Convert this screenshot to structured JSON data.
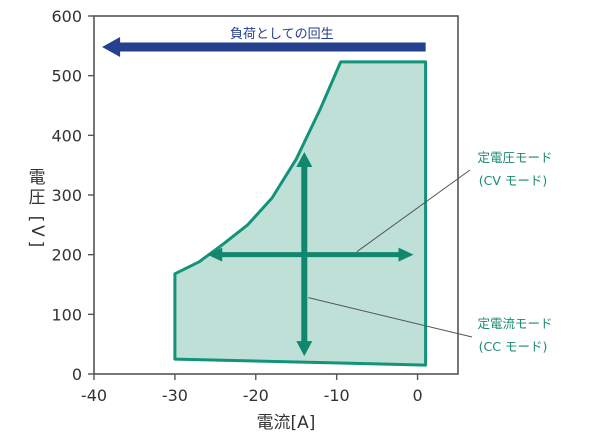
{
  "chart_data": {
    "type": "area",
    "xlabel": "電流[A]",
    "ylabel_chars": [
      "電",
      "圧",
      "[",
      "V",
      "]"
    ],
    "xlim": [
      -40,
      5
    ],
    "ylim": [
      0,
      600
    ],
    "x_ticks": [
      -40,
      -30,
      -20,
      -10,
      0
    ],
    "x_tick_labels": [
      "-40",
      "-30",
      "-20",
      "-10",
      "0"
    ],
    "y_ticks": [
      0,
      100,
      200,
      300,
      400,
      500,
      600
    ],
    "y_tick_labels": [
      "0",
      "100",
      "200",
      "300",
      "400",
      "500",
      "600"
    ],
    "grid": false,
    "region": {
      "outline": [
        [
          -30,
          25
        ],
        [
          1,
          15
        ],
        [
          1,
          523
        ],
        [
          -9.5,
          523
        ],
        [
          -12,
          445
        ],
        [
          -15,
          360
        ],
        [
          -18,
          295
        ],
        [
          -21,
          250
        ],
        [
          -24,
          218
        ],
        [
          -27,
          188
        ],
        [
          -30,
          168
        ]
      ],
      "fill_color": "#bfe0d6",
      "stroke_color": "#12937a"
    },
    "arrows": {
      "vertical": {
        "x": -14,
        "y_from": 30,
        "y_to": 372
      },
      "horizontal": {
        "y": 200,
        "x_from": -26,
        "x_to": -0.5
      },
      "color": "#11876d"
    },
    "banner": {
      "text": "負荷としての回生",
      "y": 548,
      "x_from": 1,
      "x_to": -39,
      "color": "#25408f"
    },
    "annotations": [
      {
        "lines": [
          "定電圧モード",
          "(CV モード)"
        ],
        "target": [
          -7.5,
          205
        ],
        "anchor": "upper-right"
      },
      {
        "lines": [
          "定電流モード",
          "(CC モード)"
        ],
        "target": [
          -13.5,
          128
        ],
        "anchor": "lower-right"
      }
    ]
  }
}
